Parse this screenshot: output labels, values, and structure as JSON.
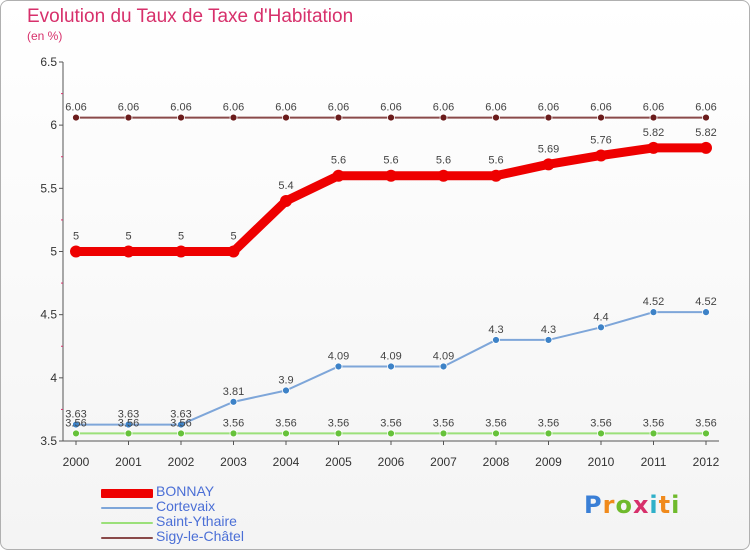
{
  "header": {
    "title": "Evolution du Taux de Taxe d'Habitation",
    "subtitle": "(en %)"
  },
  "logo": {
    "text": "Proxiti",
    "colors": [
      "#3a7fd6",
      "#f08a1c",
      "#6fba2c",
      "#d7306b",
      "#2fb0c9",
      "#f08a1c",
      "#6fba2c"
    ]
  },
  "colors": {
    "title": "#d7306b",
    "axis": "#555555",
    "grid": "#cfcfcf",
    "legend_text": "#4b6fd6"
  },
  "chart_data": {
    "type": "line",
    "title": "Evolution du Taux de Taxe d'Habitation",
    "ylabel": "(en %)",
    "xlabel": "",
    "ylim": [
      3.5,
      6.5
    ],
    "yticks": [
      "3.5",
      "4",
      "4.5",
      "5",
      "5.5",
      "6",
      "6.5"
    ],
    "grid": "none",
    "legend_position": "bottom-left",
    "x": [
      "2000",
      "2001",
      "2002",
      "2003",
      "2004",
      "2005",
      "2006",
      "2007",
      "2008",
      "2009",
      "2010",
      "2011",
      "2012"
    ],
    "series": [
      {
        "name": "BONNAY",
        "color": "#ee0000",
        "marker_color": "#ee0000",
        "thick": true,
        "values": [
          5,
          5,
          5,
          5,
          5.4,
          5.6,
          5.6,
          5.6,
          5.6,
          5.69,
          5.76,
          5.82,
          5.82
        ],
        "labels": [
          "5",
          "5",
          "5",
          "5",
          "5.4",
          "5.6",
          "5.6",
          "5.6",
          "5.6",
          "5.69",
          "5.76",
          "5.82",
          "5.82"
        ]
      },
      {
        "name": "Cortevaix",
        "color": "#7ea6d9",
        "marker_color": "#3d82c7",
        "thick": false,
        "values": [
          3.63,
          3.63,
          3.63,
          3.81,
          3.9,
          4.09,
          4.09,
          4.09,
          4.3,
          4.3,
          4.4,
          4.52,
          4.52
        ],
        "labels": [
          "3.63",
          "3.63",
          "3.63",
          "3.81",
          "3.9",
          "4.09",
          "4.09",
          "4.09",
          "4.3",
          "4.3",
          "4.4",
          "4.52",
          "4.52"
        ]
      },
      {
        "name": "Saint-Ythaire",
        "color": "#9be07a",
        "marker_color": "#66c23a",
        "thick": false,
        "values": [
          3.56,
          3.56,
          3.56,
          3.56,
          3.56,
          3.56,
          3.56,
          3.56,
          3.56,
          3.56,
          3.56,
          3.56,
          3.56
        ],
        "labels": [
          "3.56",
          "3.56",
          "3.56",
          "3.56",
          "3.56",
          "3.56",
          "3.56",
          "3.56",
          "3.56",
          "3.56",
          "3.56",
          "3.56",
          "3.56"
        ]
      },
      {
        "name": "Sigy-le-Châtel",
        "color": "#8a4a4a",
        "marker_color": "#6b1c1c",
        "thick": false,
        "values": [
          6.06,
          6.06,
          6.06,
          6.06,
          6.06,
          6.06,
          6.06,
          6.06,
          6.06,
          6.06,
          6.06,
          6.06,
          6.06
        ],
        "labels": [
          "6.06",
          "6.06",
          "6.06",
          "6.06",
          "6.06",
          "6.06",
          "6.06",
          "6.06",
          "6.06",
          "6.06",
          "6.06",
          "6.06",
          "6.06"
        ]
      }
    ]
  }
}
